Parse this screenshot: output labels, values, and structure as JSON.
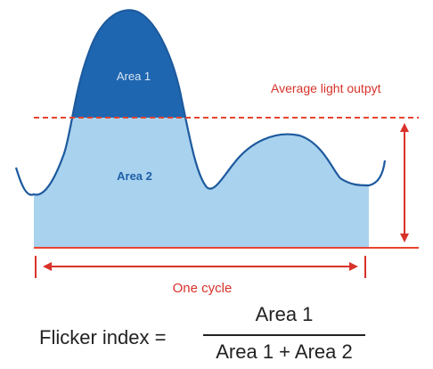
{
  "labels": {
    "area1": "Area 1",
    "area2": "Area 2",
    "average": "Average light outpyt",
    "cycle": "One cycle"
  },
  "formula": {
    "prefix": "Flicker index =",
    "numerator": "Area 1",
    "denominator": "Area 1 + Area 2"
  },
  "colors": {
    "area1_fill": "#1f66b0",
    "area2_fill": "#a9d2ee",
    "curve": "#1d5a9e",
    "average_line": "#e8442f",
    "annotation": "#d8322a",
    "area2_label": "#1f5fa8",
    "area1_label": "#d7e6f5"
  }
}
